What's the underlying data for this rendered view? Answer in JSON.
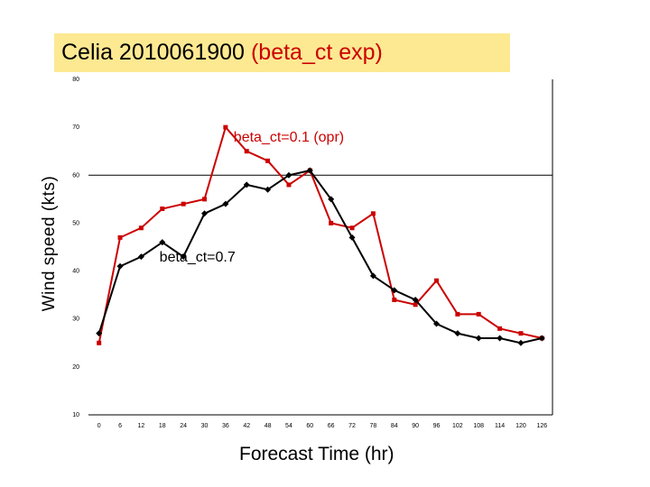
{
  "chart_data": {
    "type": "line",
    "title": "Celia 2010061900",
    "subtitle": "(beta_ct exp)",
    "xlabel": "Forecast Time (hr)",
    "ylabel": "Wind speed (kts)",
    "x": [
      0,
      6,
      12,
      18,
      24,
      30,
      36,
      42,
      48,
      54,
      60,
      66,
      72,
      78,
      84,
      90,
      96,
      102,
      108,
      114,
      120,
      126
    ],
    "xlim": [
      -3,
      129
    ],
    "ylim": [
      10,
      80
    ],
    "yticks": [
      10,
      20,
      30,
      40,
      50,
      60,
      70,
      80
    ],
    "reference_line": 60,
    "grid": false,
    "series": [
      {
        "values": [
          25,
          47,
          49,
          53,
          54,
          55,
          70,
          65,
          63,
          58,
          61,
          50,
          49,
          52,
          34,
          33,
          38,
          31,
          31,
          28,
          27,
          26
        ],
        "color": "#cc0000",
        "marker": "square"
      },
      {
        "values": [
          27,
          41,
          43,
          46,
          43,
          52,
          54,
          58,
          57,
          60,
          61,
          55,
          47,
          39,
          36,
          34,
          29,
          27,
          26,
          26,
          25,
          26
        ],
        "color": "#000000",
        "marker": "diamond"
      }
    ],
    "annotations": [
      {
        "text": "beta_ct=0.1 (opr)",
        "color": "#cc0000",
        "x": 54,
        "y": 67
      },
      {
        "text": "beta_ct=0.7",
        "color": "#000000",
        "x": 28,
        "y": 42
      }
    ]
  }
}
